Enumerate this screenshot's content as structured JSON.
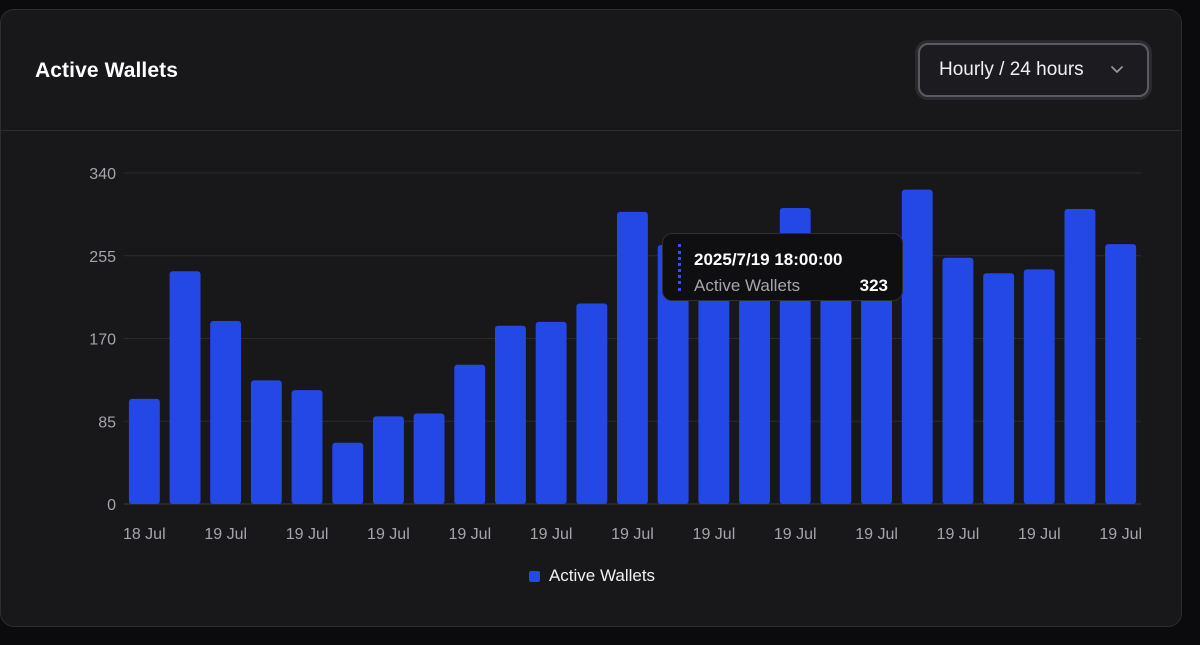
{
  "card": {
    "title": "Active Wallets",
    "range_select": {
      "label": "Hourly / 24 hours",
      "icon": "chevron-down-icon"
    }
  },
  "tooltip": {
    "timestamp": "2025/7/19 18:00:00",
    "series_name": "Active Wallets",
    "value": "323"
  },
  "chart_data": {
    "type": "bar",
    "title": "Active Wallets",
    "xlabel": "",
    "ylabel": "",
    "ylim": [
      0,
      340
    ],
    "yticks": [
      0,
      85,
      170,
      255,
      340
    ],
    "grid": true,
    "legend_position": "bottom-center",
    "categories": [
      "18 Jul",
      "19 Jul",
      "19 Jul",
      "19 Jul",
      "19 Jul",
      "19 Jul",
      "19 Jul",
      "19 Jul",
      "19 Jul",
      "19 Jul",
      "19 Jul",
      "19 Jul",
      "19 Jul",
      "19 Jul",
      "19 Jul",
      "19 Jul",
      "19 Jul",
      "19 Jul",
      "19 Jul",
      "19 Jul",
      "19 Jul",
      "19 Jul",
      "19 Jul",
      "19 Jul",
      "19 Jul"
    ],
    "tick_label_every": 2,
    "series": [
      {
        "name": "Active Wallets",
        "color": "#2448e6",
        "values": [
          108,
          239,
          188,
          127,
          117,
          63,
          90,
          93,
          143,
          183,
          187,
          206,
          300,
          266,
          262,
          256,
          304,
          262,
          247,
          323,
          253,
          237,
          241,
          303,
          267
        ]
      }
    ]
  }
}
